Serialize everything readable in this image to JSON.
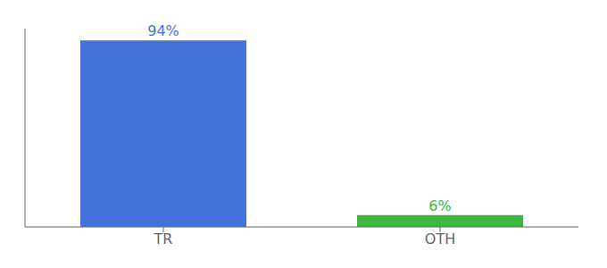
{
  "chart_data": {
    "type": "bar",
    "categories": [
      "TR",
      "OTH"
    ],
    "values": [
      94,
      6
    ],
    "value_labels": [
      "94%",
      "6%"
    ],
    "colors": [
      "#4472db",
      "#3db83d"
    ],
    "ylim": [
      0,
      100
    ],
    "data_labels": true,
    "tick_labels": "x"
  }
}
